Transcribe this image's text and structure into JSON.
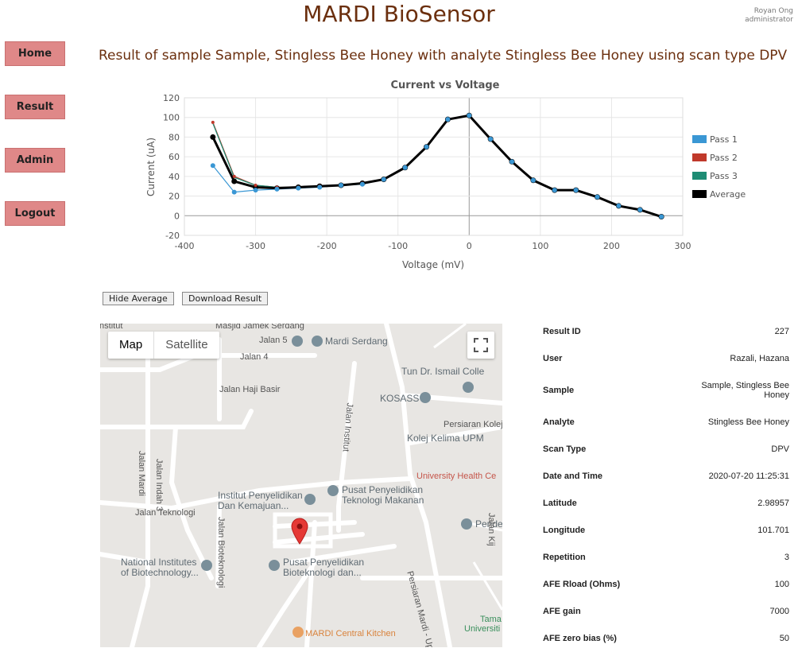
{
  "header": {
    "title": "MARDI BioSensor",
    "user_name": "Royan Ong",
    "user_role": "administrator"
  },
  "nav": {
    "items": [
      "Home",
      "Result",
      "Admin",
      "Logout"
    ]
  },
  "result_heading": "Result of sample Sample, Stingless Bee Honey with analyte Stingless Bee Honey using scan type DPV",
  "buttons": {
    "hide_average": "Hide Average",
    "download_result": "Download Result"
  },
  "chart_data": {
    "type": "line",
    "title": "Current vs Voltage",
    "xlabel": "Voltage (mV)",
    "ylabel": "Current (uA)",
    "xlim": [
      -400,
      300
    ],
    "ylim": [
      -20,
      120
    ],
    "xticks": [
      -400,
      -300,
      -200,
      -100,
      0,
      100,
      200,
      300
    ],
    "yticks": [
      -20,
      0,
      20,
      40,
      60,
      80,
      100,
      120
    ],
    "grid": true,
    "legend_position": "right",
    "series": [
      {
        "name": "Pass 1",
        "color": "#3a97d4",
        "x": [
          -360,
          -330,
          -300,
          -270,
          -240,
          -210,
          -180,
          -150,
          -120,
          -90,
          -60,
          -30,
          0,
          30,
          60,
          90,
          120,
          150,
          180,
          210,
          240,
          270
        ],
        "y": [
          51,
          24,
          26,
          27,
          28,
          29,
          31,
          32,
          37,
          49,
          70,
          98,
          102,
          78,
          55,
          36,
          26,
          26,
          19,
          10,
          6,
          -1
        ]
      },
      {
        "name": "Pass 2",
        "color": "#c0392b",
        "x": [
          -360,
          -330,
          -300,
          -270,
          -240,
          -210,
          -180,
          -150,
          -120,
          -90,
          -60,
          -30,
          0,
          30,
          60,
          90,
          120,
          150,
          180,
          210,
          240,
          270
        ],
        "y": [
          95,
          40,
          31,
          29,
          29,
          30,
          31,
          33,
          37,
          49,
          70,
          98,
          102,
          78,
          55,
          36,
          26,
          26,
          19,
          10,
          6,
          -1
        ]
      },
      {
        "name": "Pass 3",
        "color": "#1e8c74",
        "x": [
          -360,
          -330,
          -300,
          -270,
          -240,
          -210,
          -180,
          -150,
          -120,
          -90,
          -60,
          -30,
          0,
          30,
          60,
          90,
          120,
          150,
          180,
          210,
          240,
          270
        ],
        "y": [
          94,
          39,
          31,
          29,
          29,
          30,
          31,
          33,
          37,
          49,
          70,
          98,
          102,
          78,
          55,
          36,
          26,
          26,
          19,
          10,
          6,
          -1
        ]
      },
      {
        "name": "Average",
        "color": "#000000",
        "x": [
          -360,
          -330,
          -300,
          -270,
          -240,
          -210,
          -180,
          -150,
          -120,
          -90,
          -60,
          -30,
          0,
          30,
          60,
          90,
          120,
          150,
          180,
          210,
          240,
          270
        ],
        "y": [
          80,
          35,
          29,
          28,
          29,
          30,
          31,
          33,
          37,
          49,
          70,
          98,
          102,
          78,
          55,
          36,
          26,
          26,
          19,
          10,
          6,
          -1
        ]
      }
    ]
  },
  "map": {
    "type_map": "Map",
    "type_satellite": "Satellite",
    "labels": {
      "masjid": "Masjid Jamek Serdang",
      "mardi_serdang": "Mardi Serdang",
      "tun_dr": "Tun Dr. Ismail Colle",
      "kosass": "KOSASS",
      "persiaran_kolej": "Persiaran Kolej",
      "kolej_kelima": "Kolej Kelima UPM",
      "jalan_5": "Jalan 5",
      "jalan_4": "Jalan 4",
      "jalan_haji_basir": "Jalan Haji Basir",
      "jalan_mardi": "Jalan Mardi",
      "jalan_indah_3": "Jalan Indah 3",
      "jalan_teknologi": "Jalan Teknologi",
      "jalan_bioteknologi": "Jalan Bioteknologi",
      "jalan_institut": "Jalan Institut",
      "university_health": "University Health Ce",
      "institut_penyelidikan_1": "Institut Penyelidikan",
      "institut_penyelidikan_2": "Dan Kemajuan...",
      "pusat_makanan_1": "Pusat Penyelidikan",
      "pusat_makanan_2": "Teknologi Makanan",
      "penda": "Pende",
      "national_1": "National Institutes",
      "national_2": "of Biotechnology...",
      "pusat_bio_1": "Pusat Penyelidikan",
      "pusat_bio_2": "Bioteknologi dan...",
      "persiaran_mardi": "Persiaran Mardi - Upm",
      "mardi_kitchen": "MARDI Central Kitchen",
      "tama_1": "Tama",
      "tama_2": "Universiti",
      "jalan_kijang": "Jalan Kij",
      "institut_top": "Institut"
    }
  },
  "info": {
    "rows": [
      {
        "key": "Result ID",
        "value": "227"
      },
      {
        "key": "User",
        "value": "Razali, Hazana"
      },
      {
        "key": "Sample",
        "value": "Sample, Stingless Bee Honey"
      },
      {
        "key": "Analyte",
        "value": "Stingless Bee Honey"
      },
      {
        "key": "Scan Type",
        "value": "DPV"
      },
      {
        "key": "Date and Time",
        "value": "2020-07-20 11:25:31"
      },
      {
        "key": "Latitude",
        "value": "2.98957"
      },
      {
        "key": "Longitude",
        "value": "101.701"
      },
      {
        "key": "Repetition",
        "value": "3"
      },
      {
        "key": "AFE Rload (Ohms)",
        "value": "100"
      },
      {
        "key": "AFE gain",
        "value": "7000"
      },
      {
        "key": "AFE zero bias (%)",
        "value": "50"
      }
    ]
  }
}
